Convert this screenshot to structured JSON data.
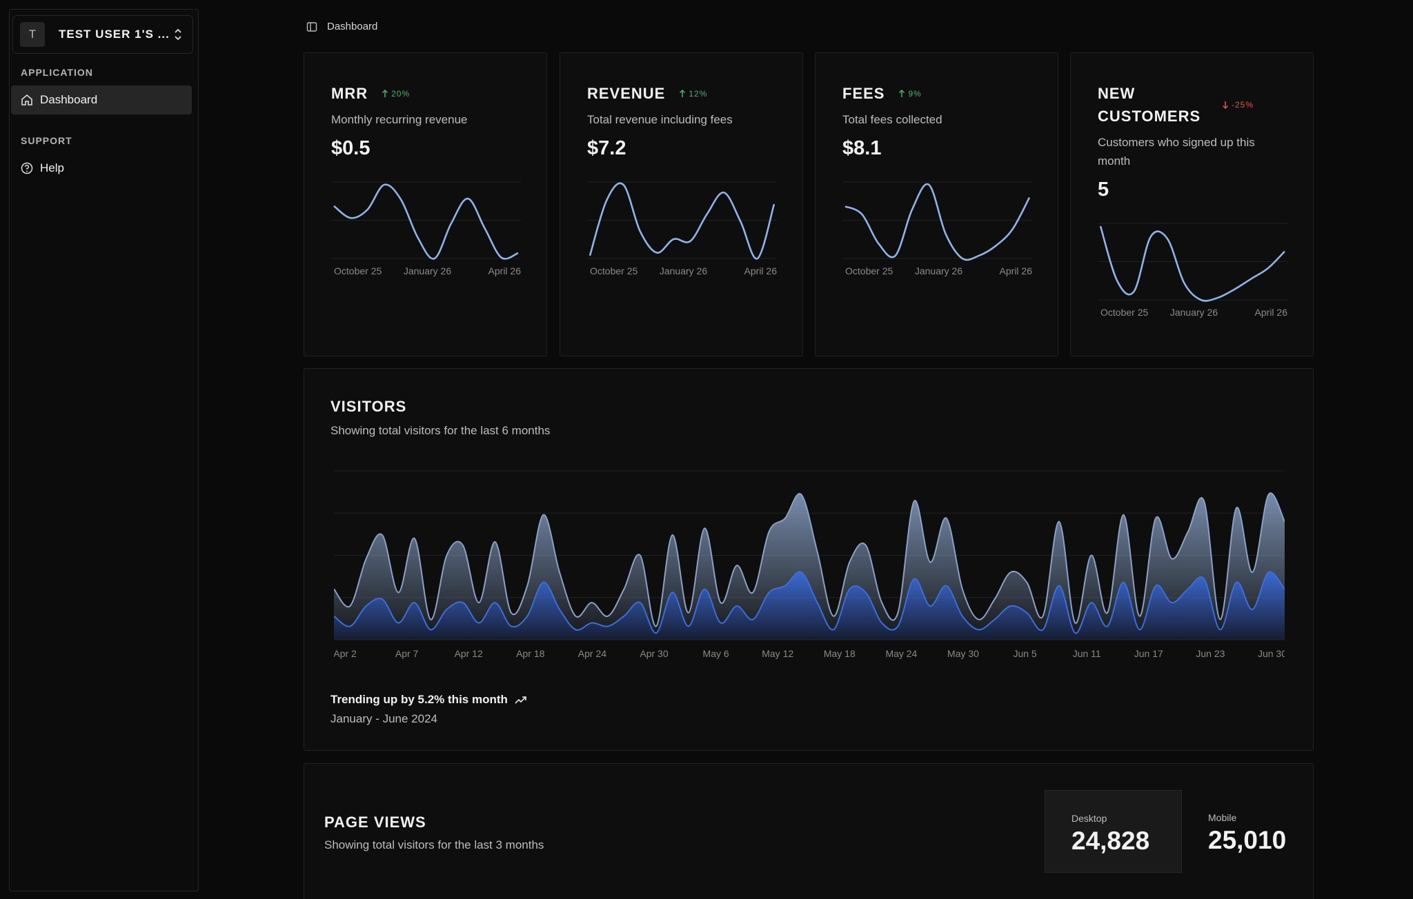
{
  "sidebar": {
    "workspace": {
      "avatar": "T",
      "name": "TEST USER 1'S ..."
    },
    "groups": [
      {
        "label": "APPLICATION",
        "items": [
          "Dashboard"
        ]
      },
      {
        "label": "SUPPORT",
        "items": [
          "Help"
        ]
      }
    ]
  },
  "header": {
    "breadcrumb": "Dashboard"
  },
  "metrics": [
    {
      "title": "MRR",
      "change": "20%",
      "direction": "up",
      "subtitle": "Monthly recurring revenue",
      "value": "$0.5",
      "chart": {
        "type": "line",
        "color": "#8fb4e8",
        "x_labels": [
          "October 25",
          "January 26",
          "April 26"
        ],
        "values": [
          59,
          46,
          55,
          82,
          66,
          25,
          2,
          40,
          67,
          35,
          3,
          8
        ]
      }
    },
    {
      "title": "REVENUE",
      "change": "12%",
      "direction": "up",
      "subtitle": "Total revenue including fees",
      "value": "$7.2",
      "chart": {
        "type": "line",
        "color": "#8fb4e8",
        "x_labels": [
          "October 25",
          "January 26",
          "April 26"
        ],
        "values": [
          5,
          62,
          78,
          30,
          8,
          22,
          20,
          48,
          70,
          40,
          2,
          58
        ]
      }
    },
    {
      "title": "FEES",
      "change": "9%",
      "direction": "up",
      "subtitle": "Total fees collected",
      "value": "$8.1",
      "chart": {
        "type": "line",
        "color": "#8fb4e8",
        "x_labels": [
          "October 25",
          "January 26",
          "April 26"
        ],
        "values": [
          58,
          50,
          20,
          8,
          55,
          80,
          30,
          5,
          8,
          18,
          35,
          67
        ]
      }
    },
    {
      "title": "NEW CUSTOMERS",
      "change": "-25%",
      "direction": "down",
      "subtitle": "Customers who signed up this month",
      "value": "5",
      "chart": {
        "type": "line",
        "color": "#8fb4e8",
        "x_labels": [
          "October 25",
          "January 26",
          "April 26"
        ],
        "values": [
          82,
          30,
          20,
          72,
          70,
          28,
          12,
          14,
          22,
          32,
          42,
          58
        ]
      }
    }
  ],
  "visitors": {
    "title": "VISITORS",
    "subtitle": "Showing total visitors for the last 6 months",
    "chart": {
      "type": "area",
      "x_labels": [
        "Apr 2",
        "Apr 7",
        "Apr 12",
        "Apr 18",
        "Apr 24",
        "Apr 30",
        "May 6",
        "May 12",
        "May 18",
        "May 24",
        "May 30",
        "Jun 5",
        "Jun 11",
        "Jun 17",
        "Jun 23",
        "Jun 30"
      ],
      "series": [
        {
          "color": "#8aa2c8",
          "values": [
            30,
            20,
            48,
            62,
            28,
            60,
            12,
            50,
            56,
            22,
            58,
            16,
            32,
            74,
            40,
            14,
            22,
            14,
            30,
            50,
            8,
            62,
            16,
            66,
            22,
            44,
            28,
            64,
            72,
            86,
            52,
            14,
            46,
            56,
            22,
            16,
            82,
            46,
            72,
            30,
            12,
            24,
            40,
            34,
            14,
            70,
            10,
            50,
            16,
            74,
            14,
            72,
            48,
            64,
            82,
            12,
            78,
            40,
            86,
            70
          ]
        },
        {
          "color": "#3a6ee0",
          "values": [
            14,
            8,
            20,
            24,
            10,
            22,
            6,
            18,
            22,
            10,
            22,
            8,
            14,
            34,
            18,
            6,
            10,
            8,
            14,
            22,
            4,
            28,
            8,
            30,
            10,
            20,
            12,
            28,
            32,
            40,
            22,
            6,
            30,
            28,
            10,
            8,
            36,
            20,
            32,
            14,
            6,
            12,
            20,
            16,
            6,
            32,
            4,
            22,
            8,
            34,
            6,
            32,
            22,
            30,
            36,
            6,
            34,
            18,
            40,
            30
          ]
        }
      ]
    },
    "trend": "Trending up by 5.2% this month",
    "period": "January - June 2024"
  },
  "page_views": {
    "title": "PAGE VIEWS",
    "subtitle": "Showing total visitors for the last 3 months",
    "stats": [
      {
        "label": "Desktop",
        "value": "24,828"
      },
      {
        "label": "Mobile",
        "value": "25,010"
      }
    ]
  }
}
